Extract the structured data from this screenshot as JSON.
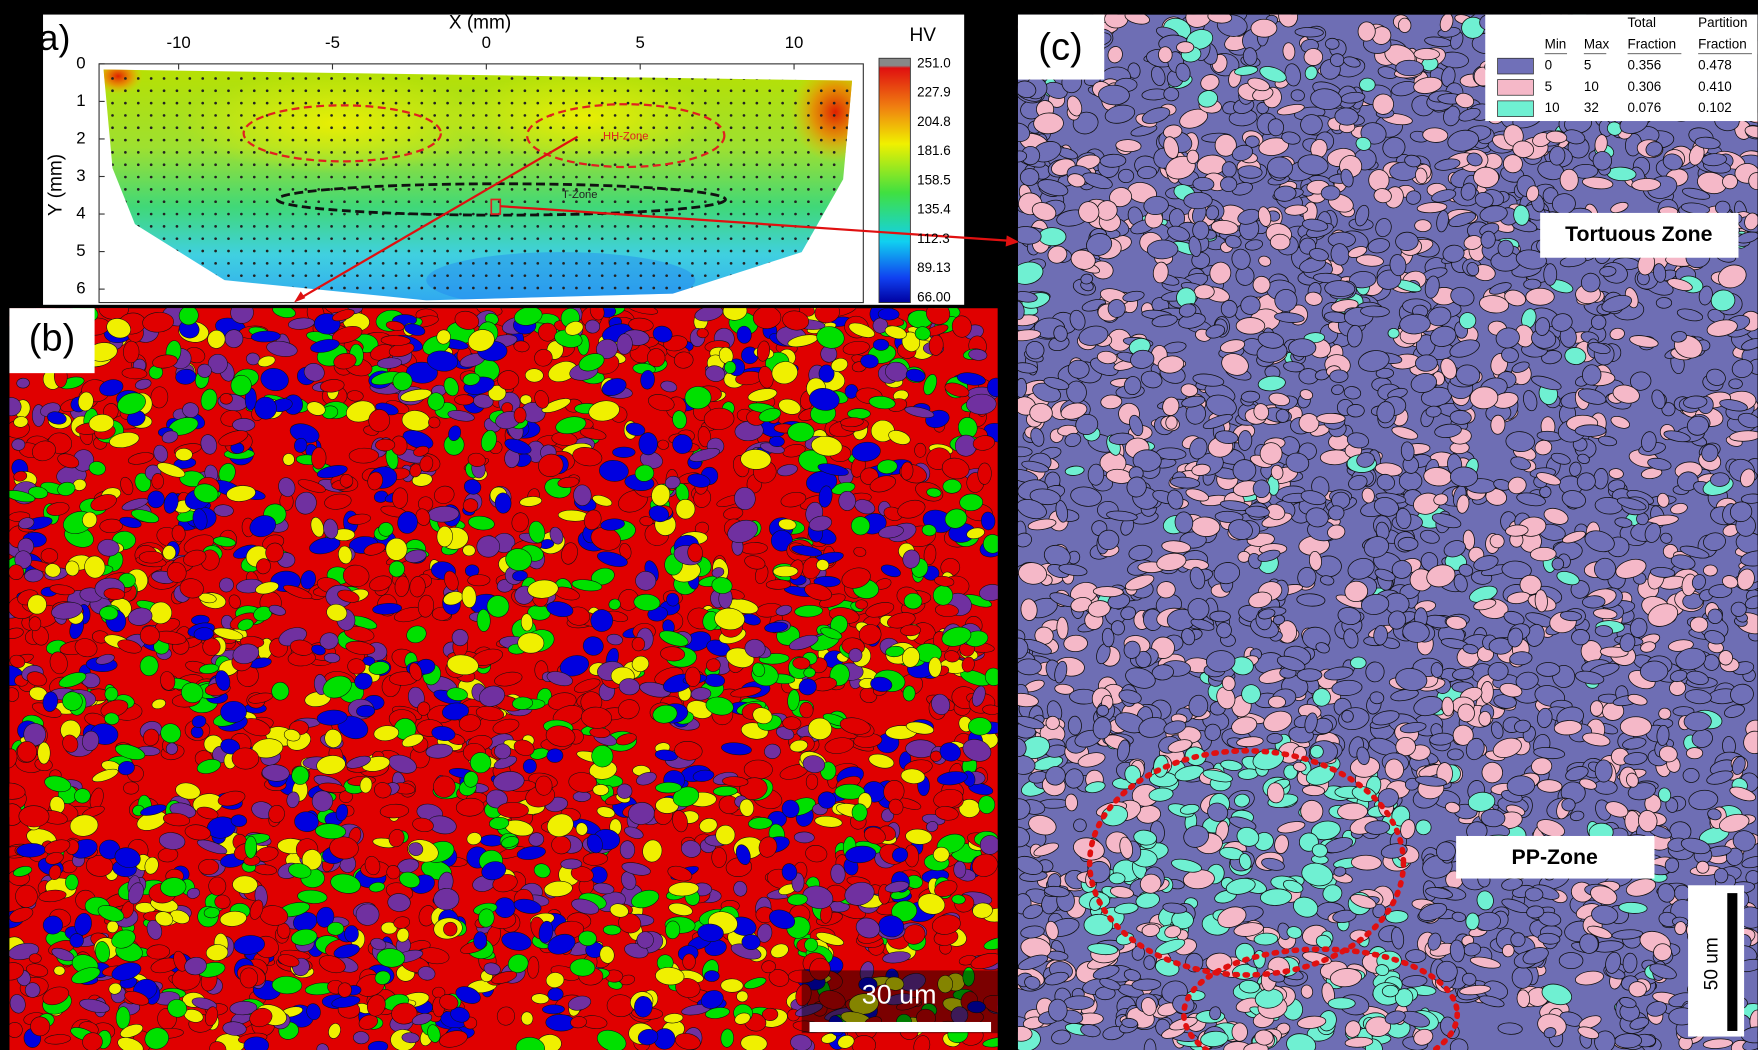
{
  "panel_a": {
    "label": "a)",
    "x_label": "X (mm)",
    "y_label": "Y (mm)",
    "colorbar_title": "HV",
    "x_ticks": [
      -10,
      -5,
      0,
      5,
      10
    ],
    "y_ticks": [
      0,
      1,
      2,
      3,
      4,
      5,
      6
    ],
    "colorbar_ticks": [
      "251.0",
      "227.9",
      "204.8",
      "181.6",
      "158.5",
      "135.4",
      "112.3",
      "89.13",
      "66.00"
    ],
    "zones": [
      "HH-Zone",
      "T-Zone"
    ]
  },
  "panel_b": {
    "label": "(b)",
    "scale_bar": "30 um"
  },
  "panel_c": {
    "label": "(c)",
    "legend": {
      "header_top": [
        "Total",
        "Partition"
      ],
      "header": [
        "Min",
        "Max",
        "Fraction",
        "Fraction"
      ],
      "rows": [
        {
          "color": "#7070b8",
          "cells": [
            "0",
            "5",
            "0.356",
            "0.478"
          ]
        },
        {
          "color": "#f5b8c8",
          "cells": [
            "5",
            "10",
            "0.306",
            "0.410"
          ]
        },
        {
          "color": "#6ff0d2",
          "cells": [
            "10",
            "32",
            "0.076",
            "0.102"
          ]
        }
      ]
    },
    "annotations": [
      "Tortuous Zone",
      "PP-Zone"
    ],
    "scale_bar": "50 um"
  }
}
